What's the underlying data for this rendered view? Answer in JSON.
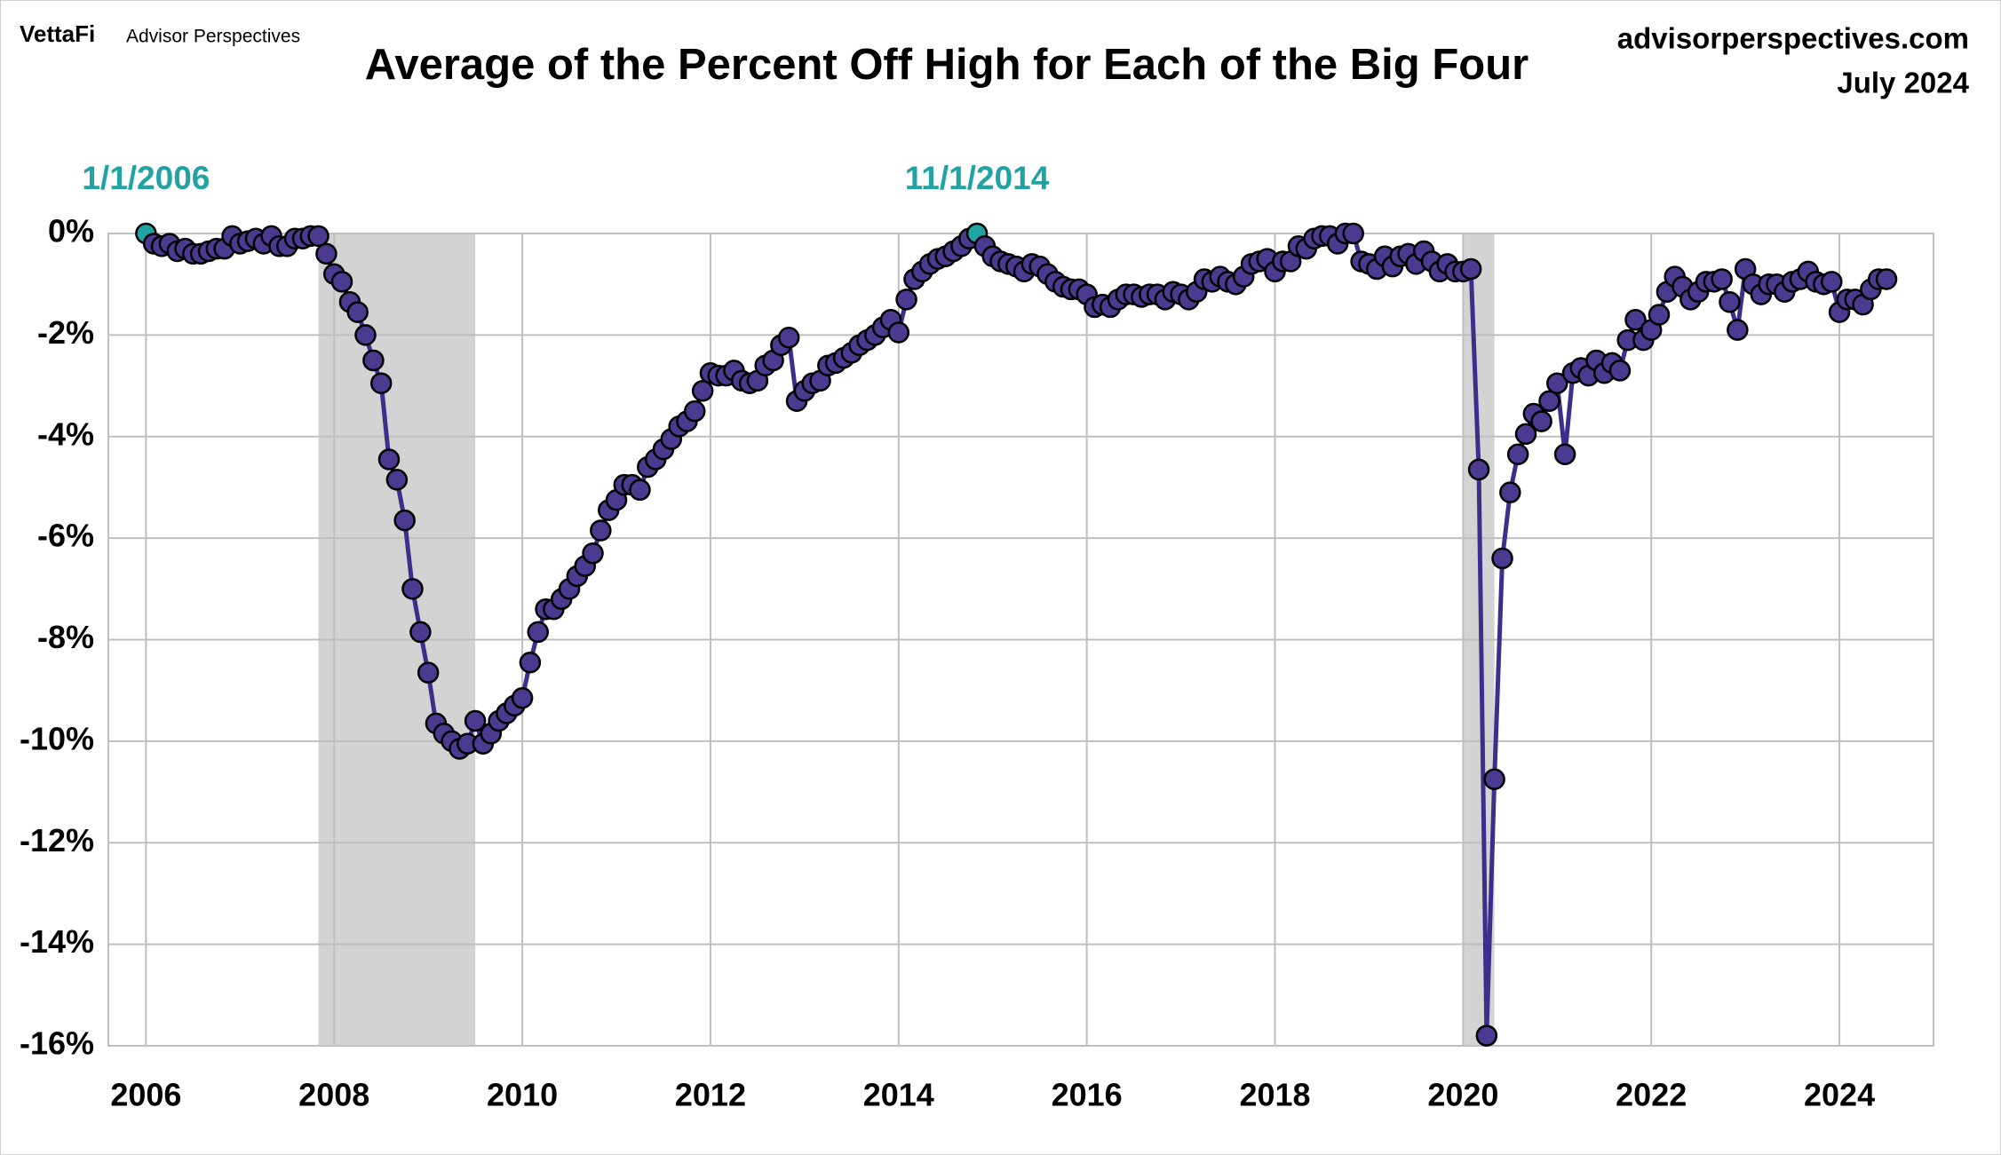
{
  "chart_data": {
    "type": "line",
    "brand": "VettaFi",
    "brand_sub": "Advisor Perspectives",
    "title": "Average of the Percent Off High for Each of the Big Four",
    "source": "advisorperspectives.com",
    "date": "July 2024",
    "color": "#3d2e8c",
    "marker_color": "#4b3a8f",
    "highlight_color": "#21a3a3",
    "shade_color": "#d3d3d3",
    "grid": true,
    "x": [
      2006,
      2006.083,
      2006.167,
      2006.25,
      2006.333,
      2006.417,
      2006.5,
      2006.583,
      2006.667,
      2006.75,
      2006.833,
      2006.917,
      2007,
      2007.083,
      2007.167,
      2007.25,
      2007.333,
      2007.417,
      2007.5,
      2007.583,
      2007.667,
      2007.75,
      2007.833,
      2007.917,
      2008,
      2008.083,
      2008.167,
      2008.25,
      2008.333,
      2008.417,
      2008.5,
      2008.583,
      2008.667,
      2008.75,
      2008.833,
      2008.917,
      2009,
      2009.083,
      2009.167,
      2009.25,
      2009.333,
      2009.417,
      2009.5,
      2009.583,
      2009.667,
      2009.75,
      2009.833,
      2009.917,
      2010,
      2010.083,
      2010.167,
      2010.25,
      2010.333,
      2010.417,
      2010.5,
      2010.583,
      2010.667,
      2010.75,
      2010.833,
      2010.917,
      2011,
      2011.083,
      2011.167,
      2011.25,
      2011.333,
      2011.417,
      2011.5,
      2011.583,
      2011.667,
      2011.75,
      2011.833,
      2011.917,
      2012,
      2012.083,
      2012.167,
      2012.25,
      2012.333,
      2012.417,
      2012.5,
      2012.583,
      2012.667,
      2012.75,
      2012.833,
      2012.917,
      2013,
      2013.083,
      2013.167,
      2013.25,
      2013.333,
      2013.417,
      2013.5,
      2013.583,
      2013.667,
      2013.75,
      2013.833,
      2013.917,
      2014,
      2014.083,
      2014.167,
      2014.25,
      2014.333,
      2014.417,
      2014.5,
      2014.583,
      2014.667,
      2014.75,
      2014.833,
      2014.917,
      2015,
      2015.083,
      2015.167,
      2015.25,
      2015.333,
      2015.417,
      2015.5,
      2015.583,
      2015.667,
      2015.75,
      2015.833,
      2015.917,
      2016,
      2016.083,
      2016.167,
      2016.25,
      2016.333,
      2016.417,
      2016.5,
      2016.583,
      2016.667,
      2016.75,
      2016.833,
      2016.917,
      2017,
      2017.083,
      2017.167,
      2017.25,
      2017.333,
      2017.417,
      2017.5,
      2017.583,
      2017.667,
      2017.75,
      2017.833,
      2017.917,
      2018,
      2018.083,
      2018.167,
      2018.25,
      2018.333,
      2018.417,
      2018.5,
      2018.583,
      2018.667,
      2018.75,
      2018.833,
      2018.917,
      2019,
      2019.083,
      2019.167,
      2019.25,
      2019.333,
      2019.417,
      2019.5,
      2019.583,
      2019.667,
      2019.75,
      2019.833,
      2019.917,
      2020,
      2020.083,
      2020.167,
      2020.25,
      2020.333,
      2020.417,
      2020.5,
      2020.583,
      2020.667,
      2020.75,
      2020.833,
      2020.917,
      2021,
      2021.083,
      2021.167,
      2021.25,
      2021.333,
      2021.417,
      2021.5,
      2021.583,
      2021.667,
      2021.75,
      2021.833,
      2021.917,
      2022,
      2022.083,
      2022.167,
      2022.25,
      2022.333,
      2022.417,
      2022.5,
      2022.583,
      2022.667,
      2022.75,
      2022.833,
      2022.917,
      2023,
      2023.083,
      2023.167,
      2023.25,
      2023.333,
      2023.417,
      2023.5,
      2023.583,
      2023.667,
      2023.75,
      2023.833,
      2023.917,
      2024,
      2024.083,
      2024.167,
      2024.25,
      2024.333,
      2024.417,
      2024.5
    ],
    "values": [
      0,
      -0.2,
      -0.25,
      -0.2,
      -0.35,
      -0.3,
      -0.4,
      -0.4,
      -0.35,
      -0.3,
      -0.3,
      -0.05,
      -0.2,
      -0.15,
      -0.1,
      -0.2,
      -0.05,
      -0.25,
      -0.25,
      -0.1,
      -0.1,
      -0.05,
      -0.05,
      -0.4,
      -0.8,
      -0.95,
      -1.35,
      -1.55,
      -2.0,
      -2.5,
      -2.95,
      -4.45,
      -4.85,
      -5.65,
      -7.0,
      -7.85,
      -8.65,
      -9.65,
      -9.85,
      -10.0,
      -10.15,
      -10.05,
      -9.6,
      -10.05,
      -9.85,
      -9.6,
      -9.45,
      -9.3,
      -9.15,
      -8.45,
      -7.85,
      -7.4,
      -7.4,
      -7.2,
      -7.0,
      -6.75,
      -6.55,
      -6.3,
      -5.85,
      -5.45,
      -5.25,
      -4.95,
      -4.95,
      -5.05,
      -4.6,
      -4.45,
      -4.25,
      -4.05,
      -3.8,
      -3.7,
      -3.5,
      -3.1,
      -2.75,
      -2.8,
      -2.8,
      -2.7,
      -2.9,
      -2.95,
      -2.9,
      -2.6,
      -2.5,
      -2.2,
      -2.05,
      -3.3,
      -3.1,
      -2.95,
      -2.9,
      -2.6,
      -2.55,
      -2.45,
      -2.35,
      -2.2,
      -2.1,
      -2.0,
      -1.85,
      -1.7,
      -1.95,
      -1.3,
      -0.9,
      -0.75,
      -0.6,
      -0.5,
      -0.45,
      -0.35,
      -0.25,
      -0.1,
      0,
      -0.25,
      -0.45,
      -0.55,
      -0.6,
      -0.65,
      -0.75,
      -0.6,
      -0.65,
      -0.8,
      -0.95,
      -1.05,
      -1.1,
      -1.1,
      -1.2,
      -1.45,
      -1.4,
      -1.45,
      -1.3,
      -1.2,
      -1.2,
      -1.25,
      -1.2,
      -1.2,
      -1.3,
      -1.15,
      -1.2,
      -1.3,
      -1.15,
      -0.9,
      -0.95,
      -0.85,
      -0.95,
      -1.0,
      -0.85,
      -0.6,
      -0.55,
      -0.5,
      -0.75,
      -0.55,
      -0.55,
      -0.25,
      -0.3,
      -0.1,
      -0.05,
      -0.05,
      -0.2,
      0,
      0,
      -0.55,
      -0.6,
      -0.7,
      -0.45,
      -0.65,
      -0.45,
      -0.4,
      -0.6,
      -0.35,
      -0.55,
      -0.75,
      -0.6,
      -0.75,
      -0.75,
      -0.7,
      -4.65,
      -15.8,
      -10.75,
      -6.4,
      -5.1,
      -4.35,
      -3.95,
      -3.55,
      -3.7,
      -3.3,
      -2.95,
      -4.35,
      -2.75,
      -2.65,
      -2.8,
      -2.5,
      -2.75,
      -2.55,
      -2.7,
      -2.1,
      -1.7,
      -2.1,
      -1.9,
      -1.6,
      -1.15,
      -0.85,
      -1.05,
      -1.3,
      -1.15,
      -0.95,
      -0.95,
      -0.9,
      -1.35,
      -1.9,
      -0.7,
      -1.0,
      -1.2,
      -1.0,
      -1.0,
      -1.15,
      -0.95,
      -0.9,
      -0.75,
      -0.95,
      -1.0,
      -0.95,
      -1.55,
      -1.3,
      -1.3,
      -1.4,
      -1.1,
      -0.9,
      -0.9
    ],
    "annotations": [
      {
        "label": "1/1/2006",
        "x": 2006,
        "y": 0
      },
      {
        "label": "11/1/2014",
        "x": 2014.833,
        "y": 0
      }
    ],
    "recessions": [
      [
        2007.833,
        2009.5
      ],
      [
        2020.0,
        2020.333
      ]
    ],
    "xlim": [
      2005.6,
      2025
    ],
    "xticks": [
      2006,
      2008,
      2010,
      2012,
      2014,
      2016,
      2018,
      2020,
      2022,
      2024
    ],
    "ylim": [
      -16,
      0
    ],
    "yticks": [
      {
        "value": 0,
        "label": "0%"
      },
      {
        "value": -2,
        "label": "-2%"
      },
      {
        "value": -4,
        "label": "-4%"
      },
      {
        "value": -6,
        "label": "-6%"
      },
      {
        "value": -8,
        "label": "-8%"
      },
      {
        "value": -10,
        "label": "-10%"
      },
      {
        "value": -12,
        "label": "-12%"
      },
      {
        "value": -14,
        "label": "-14%"
      },
      {
        "value": -16,
        "label": "-16%"
      }
    ]
  }
}
